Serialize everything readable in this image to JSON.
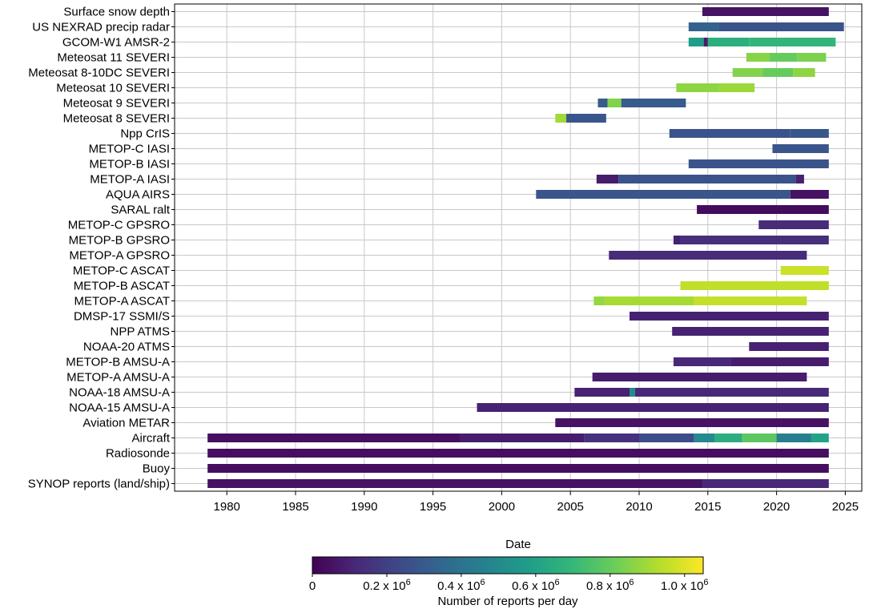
{
  "chart_data": {
    "type": "gantt-bar",
    "xlabel": "Date",
    "ylabel": "",
    "xlim": [
      1976.2,
      2026.2
    ],
    "x_ticks": [
      1980,
      1985,
      1990,
      1995,
      2000,
      2005,
      2010,
      2015,
      2020,
      2025
    ],
    "grid": true,
    "colormap": "viridis",
    "colors": [
      "#440154",
      "#482878",
      "#3e4989",
      "#31688e",
      "#26828e",
      "#1f9e89",
      "#35b779",
      "#6ece58",
      "#b5de2b",
      "#fde725"
    ],
    "colorbar": {
      "label": "Number of reports per day",
      "range": [
        0,
        1050000
      ],
      "tick_values": [
        0,
        200000,
        400000,
        600000,
        800000,
        1000000
      ],
      "tick_labels": [
        {
          "base": "0",
          "exp": ""
        },
        {
          "base": "0.2 x 10",
          "exp": "6"
        },
        {
          "base": "0.4 x 10",
          "exp": "6"
        },
        {
          "base": "0.6 x 10",
          "exp": "6"
        },
        {
          "base": "0.8 x 10",
          "exp": "6"
        },
        {
          "base": "1.0 x 10",
          "exp": "6"
        }
      ]
    },
    "series": [
      {
        "name": "Surface snow depth",
        "segments": [
          [
            2014.6,
            2023.8,
            0.05
          ]
        ]
      },
      {
        "name": "US NEXRAD precip radar",
        "segments": [
          [
            2013.6,
            2015.8,
            0.33
          ],
          [
            2015.8,
            2024.9,
            0.27
          ]
        ]
      },
      {
        "name": "GCOM-W1 AMSR-2",
        "segments": [
          [
            2013.6,
            2014.7,
            0.58
          ],
          [
            2014.7,
            2015.0,
            0.08
          ],
          [
            2015.0,
            2018.0,
            0.66
          ],
          [
            2018.0,
            2024.3,
            0.69
          ]
        ]
      },
      {
        "name": "Meteosat 11 SEVERI",
        "segments": [
          [
            2017.8,
            2019.5,
            0.86
          ],
          [
            2019.5,
            2021.5,
            0.8
          ],
          [
            2021.5,
            2023.6,
            0.84
          ]
        ]
      },
      {
        "name": "Meteosat 8-10DC SEVERI",
        "segments": [
          [
            2016.8,
            2019.0,
            0.85
          ],
          [
            2019.0,
            2021.2,
            0.8
          ],
          [
            2021.2,
            2022.8,
            0.87
          ]
        ]
      },
      {
        "name": "Meteosat 10 SEVERI",
        "segments": [
          [
            2012.7,
            2015.8,
            0.87
          ],
          [
            2015.8,
            2018.4,
            0.89
          ]
        ]
      },
      {
        "name": "Meteosat 9 SEVERI",
        "segments": [
          [
            2007.0,
            2007.7,
            0.3
          ],
          [
            2007.7,
            2008.7,
            0.85
          ],
          [
            2008.7,
            2013.4,
            0.3
          ]
        ]
      },
      {
        "name": "Meteosat 8 SEVERI",
        "segments": [
          [
            2003.9,
            2004.7,
            0.9
          ],
          [
            2004.7,
            2007.6,
            0.28
          ]
        ]
      },
      {
        "name": "Npp CrIS",
        "segments": [
          [
            2012.2,
            2021.0,
            0.27
          ],
          [
            2021.0,
            2023.8,
            0.29
          ]
        ]
      },
      {
        "name": "METOP-C IASI",
        "segments": [
          [
            2019.7,
            2023.8,
            0.28
          ]
        ]
      },
      {
        "name": "METOP-B IASI",
        "segments": [
          [
            2013.6,
            2023.8,
            0.27
          ]
        ]
      },
      {
        "name": "METOP-A IASI",
        "segments": [
          [
            2006.9,
            2008.5,
            0.08
          ],
          [
            2008.5,
            2021.4,
            0.27
          ],
          [
            2021.4,
            2022.0,
            0.1
          ]
        ]
      },
      {
        "name": "AQUA AIRS",
        "segments": [
          [
            2002.5,
            2021.0,
            0.28
          ],
          [
            2021.0,
            2023.8,
            0.05
          ]
        ]
      },
      {
        "name": "SARAL ralt",
        "segments": [
          [
            2014.2,
            2023.8,
            0.03
          ]
        ]
      },
      {
        "name": "METOP-C GPSRO",
        "segments": [
          [
            2018.7,
            2023.8,
            0.13
          ]
        ]
      },
      {
        "name": "METOP-B GPSRO",
        "segments": [
          [
            2012.5,
            2013.0,
            0.1
          ],
          [
            2013.0,
            2023.8,
            0.14
          ]
        ]
      },
      {
        "name": "METOP-A GPSRO",
        "segments": [
          [
            2007.8,
            2022.2,
            0.13
          ]
        ]
      },
      {
        "name": "METOP-C ASCAT",
        "segments": [
          [
            2020.3,
            2023.8,
            0.97
          ]
        ]
      },
      {
        "name": "METOP-B ASCAT",
        "segments": [
          [
            2013.0,
            2023.8,
            0.95
          ]
        ]
      },
      {
        "name": "METOP-A ASCAT",
        "segments": [
          [
            2006.7,
            2007.5,
            0.88
          ],
          [
            2007.5,
            2014.0,
            0.91
          ],
          [
            2014.0,
            2022.2,
            0.96
          ]
        ]
      },
      {
        "name": "DMSP-17 SSMI/S",
        "segments": [
          [
            2009.3,
            2023.8,
            0.1
          ]
        ]
      },
      {
        "name": "NPP ATMS",
        "segments": [
          [
            2012.4,
            2023.8,
            0.1
          ]
        ]
      },
      {
        "name": "NOAA-20 ATMS",
        "segments": [
          [
            2018.0,
            2023.8,
            0.1
          ]
        ]
      },
      {
        "name": "METOP-B AMSU-A",
        "segments": [
          [
            2012.5,
            2016.7,
            0.12
          ],
          [
            2016.7,
            2023.8,
            0.08
          ]
        ]
      },
      {
        "name": "METOP-A AMSU-A",
        "segments": [
          [
            2006.6,
            2022.2,
            0.08
          ]
        ]
      },
      {
        "name": "NOAA-18 AMSU-A",
        "segments": [
          [
            2005.3,
            2009.3,
            0.1
          ],
          [
            2009.3,
            2009.7,
            0.5
          ],
          [
            2009.7,
            2023.8,
            0.12
          ]
        ]
      },
      {
        "name": "NOAA-15 AMSU-A",
        "segments": [
          [
            1998.2,
            2023.8,
            0.1
          ]
        ]
      },
      {
        "name": "Aviation METAR",
        "segments": [
          [
            2003.9,
            2023.8,
            0.05
          ]
        ]
      },
      {
        "name": "Aircraft",
        "segments": [
          [
            1978.6,
            1997.0,
            0.04
          ],
          [
            1997.0,
            2006.0,
            0.08
          ],
          [
            2006.0,
            2010.0,
            0.15
          ],
          [
            2010.0,
            2014.0,
            0.25
          ],
          [
            2014.0,
            2015.5,
            0.5
          ],
          [
            2015.5,
            2017.5,
            0.65
          ],
          [
            2017.5,
            2020.0,
            0.78
          ],
          [
            2020.0,
            2022.5,
            0.45
          ],
          [
            2022.5,
            2023.8,
            0.6
          ]
        ]
      },
      {
        "name": "Radiosonde",
        "segments": [
          [
            1978.6,
            2023.8,
            0.04
          ]
        ]
      },
      {
        "name": "Buoy",
        "segments": [
          [
            1978.6,
            2023.8,
            0.04
          ]
        ]
      },
      {
        "name": "SYNOP reports (land/ship)",
        "segments": [
          [
            1978.6,
            2014.6,
            0.05
          ],
          [
            2014.6,
            2023.8,
            0.12
          ]
        ]
      }
    ]
  }
}
